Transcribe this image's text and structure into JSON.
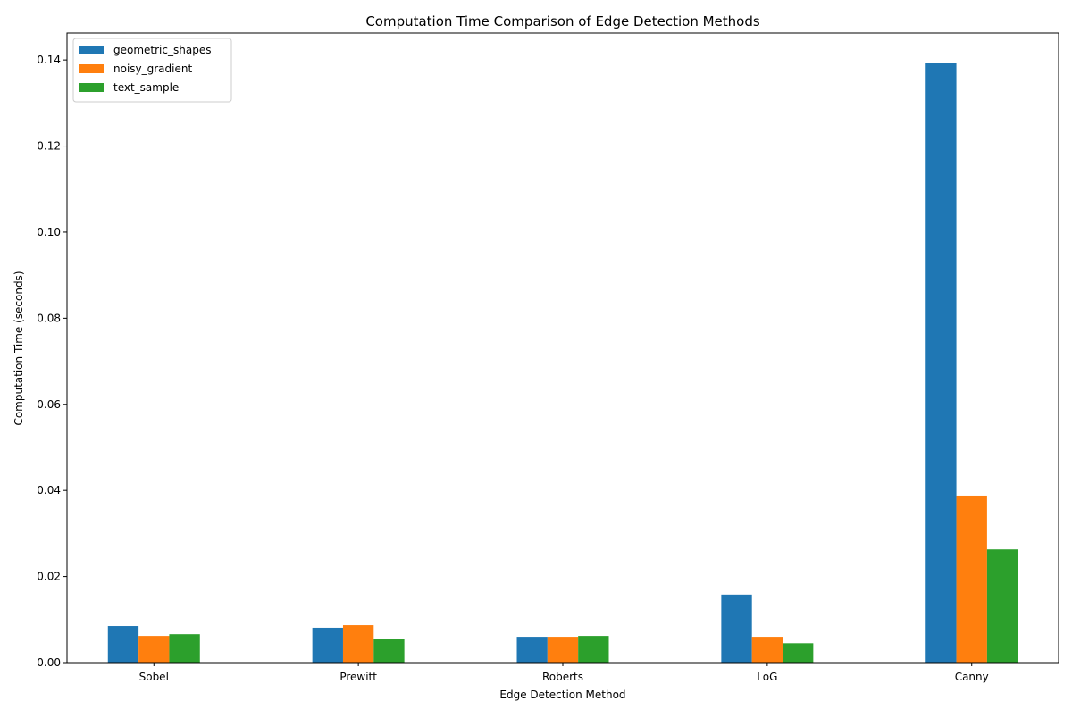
{
  "chart_data": {
    "type": "bar",
    "title": "Computation Time Comparison of Edge Detection Methods",
    "xlabel": "Edge Detection Method",
    "ylabel": "Computation Time (seconds)",
    "categories": [
      "Sobel",
      "Prewitt",
      "Roberts",
      "LoG",
      "Canny"
    ],
    "series": [
      {
        "name": "geometric_shapes",
        "color": "#1f77b4",
        "values": [
          0.0085,
          0.0081,
          0.006,
          0.0158,
          0.1393
        ]
      },
      {
        "name": "noisy_gradient",
        "color": "#ff7f0e",
        "values": [
          0.0062,
          0.0087,
          0.006,
          0.006,
          0.0388
        ]
      },
      {
        "name": "text_sample",
        "color": "#2ca02c",
        "values": [
          0.0066,
          0.0054,
          0.0062,
          0.0045,
          0.0263
        ]
      }
    ],
    "ylim": [
      0,
      0.14625
    ],
    "yticks": [
      0.0,
      0.02,
      0.04,
      0.06,
      0.08,
      0.1,
      0.12,
      0.14
    ],
    "ytick_labels": [
      "0.00",
      "0.02",
      "0.04",
      "0.06",
      "0.08",
      "0.10",
      "0.12",
      "0.14"
    ],
    "grid": false,
    "legend_position": "top-left"
  }
}
